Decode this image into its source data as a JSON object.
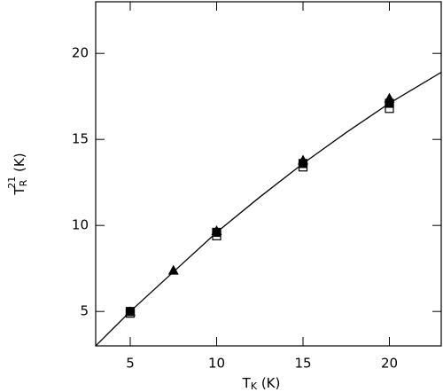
{
  "chart_data": {
    "type": "scatter",
    "x_label": [
      "T",
      "K",
      "(K)"
    ],
    "y_label": [
      "T",
      "R",
      "21",
      "(K)"
    ],
    "xlim": [
      3,
      23
    ],
    "ylim": [
      3,
      23
    ],
    "xticks": [
      5,
      10,
      15,
      20
    ],
    "yticks": [
      5,
      10,
      15,
      20
    ],
    "series": [
      {
        "marker": "open-square",
        "color": "#000000",
        "x": [
          5,
          10,
          15,
          20
        ],
        "values": [
          4.9,
          9.4,
          13.4,
          16.8
        ]
      },
      {
        "marker": "filled-square",
        "color": "#000000",
        "x": [
          5,
          10,
          15,
          20
        ],
        "values": [
          5.0,
          9.6,
          13.6,
          17.1
        ]
      },
      {
        "marker": "triangle",
        "color": "#000000",
        "x": [
          5,
          7.5,
          10,
          15,
          20
        ],
        "values": [
          5.0,
          7.4,
          9.7,
          13.8,
          17.4
        ]
      },
      {
        "marker": "line",
        "color": "#000000",
        "x": [
          3,
          5,
          7.5,
          10,
          12.5,
          15,
          17.5,
          20,
          23
        ],
        "values": [
          3.0,
          5.0,
          7.3,
          9.6,
          11.65,
          13.6,
          15.4,
          17.1,
          18.9
        ]
      }
    ]
  }
}
